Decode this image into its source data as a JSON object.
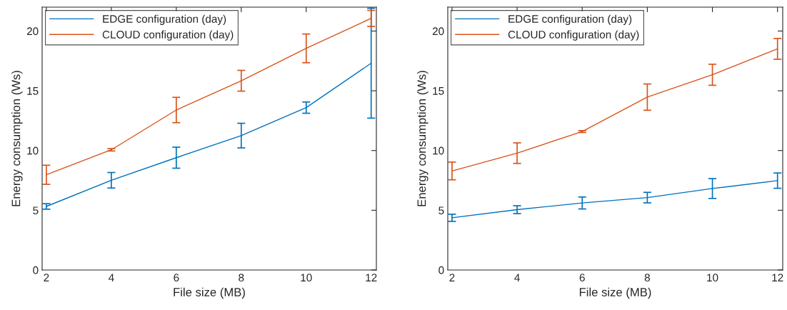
{
  "chart_data": [
    {
      "type": "line",
      "xlabel": "File size (MB)",
      "ylabel": "Energy consumption (Ws)",
      "x": [
        2,
        4,
        6,
        8,
        10,
        12
      ],
      "xlim": [
        1.87,
        12.16
      ],
      "ylim": [
        0,
        22
      ],
      "xticks": [
        2,
        4,
        6,
        8,
        10,
        12
      ],
      "yticks": [
        0,
        5,
        10,
        15,
        20
      ],
      "grid": false,
      "legend": "top left",
      "marker": "none",
      "line_style": "solid",
      "series": [
        {
          "name": "EDGE configuration (day)",
          "color": "#0072bd",
          "values": [
            5.32,
            7.51,
            9.4,
            11.25,
            13.59,
            17.31
          ],
          "errors": [
            0.23,
            0.65,
            0.88,
            1.03,
            0.47,
            4.6
          ]
        },
        {
          "name": "CLOUD configuration (day)",
          "color": "#d95319",
          "values": [
            7.97,
            10.06,
            13.39,
            15.84,
            18.55,
            21.06
          ],
          "errors": [
            0.8,
            0.1,
            1.06,
            0.87,
            1.2,
            0.67
          ]
        }
      ]
    },
    {
      "type": "line",
      "xlabel": "File size (MB)",
      "ylabel": "Energy consumption (Ws)",
      "x": [
        2,
        4,
        6,
        8,
        10,
        12
      ],
      "xlim": [
        1.87,
        12.16
      ],
      "ylim": [
        0,
        22
      ],
      "xticks": [
        2,
        4,
        6,
        8,
        10,
        12
      ],
      "yticks": [
        0,
        5,
        10,
        15,
        20
      ],
      "grid": false,
      "legend": "top left",
      "marker": "none",
      "line_style": "solid",
      "series": [
        {
          "name": "EDGE configuration (day)",
          "color": "#0072bd",
          "values": [
            4.37,
            5.05,
            5.61,
            6.06,
            6.82,
            7.48
          ],
          "errors": [
            0.3,
            0.33,
            0.5,
            0.44,
            0.83,
            0.64
          ]
        },
        {
          "name": "CLOUD configuration (day)",
          "color": "#d95319",
          "values": [
            8.29,
            9.78,
            11.59,
            14.47,
            16.34,
            18.51
          ],
          "errors": [
            0.74,
            0.86,
            0.08,
            1.1,
            0.88,
            0.87
          ]
        }
      ]
    }
  ]
}
